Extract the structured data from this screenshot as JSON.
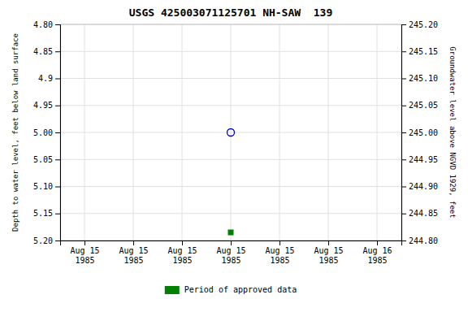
{
  "chart_data": {
    "type": "scatter",
    "title": "USGS 425003071125701 NH-SAW  139",
    "ylabel": "Depth to water level, feet below land surface",
    "y2label": "Groundwater level above NGVD 1929, feet",
    "categories": [
      "Aug 15\n1985",
      "Aug 15\n1985",
      "Aug 15\n1985",
      "Aug 15\n1985",
      "Aug 15\n1985",
      "Aug 15\n1985",
      "Aug 16\n1985"
    ],
    "series": [
      {
        "color": "#0000cc",
        "marker": "circle-open",
        "values": [
          null,
          null,
          null,
          5.0,
          null,
          null,
          null
        ]
      },
      {
        "name": "Period of approved data",
        "color": "#008000",
        "marker": "square",
        "values": [
          null,
          null,
          null,
          5.185,
          null,
          null,
          null
        ]
      }
    ],
    "ylim": [
      5.2,
      4.8
    ],
    "yticks": [
      {
        "value": 4.8,
        "label": "4.80"
      },
      4.85,
      4.9,
      4.95,
      {
        "value": 5.0,
        "label": "5.00"
      },
      5.05,
      {
        "value": 5.1,
        "label": "5.10"
      },
      5.15,
      {
        "value": 5.2,
        "label": "5.20"
      }
    ],
    "y2lim": [
      244.8,
      245.2
    ],
    "y2ticks": [
      {
        "value": 245.2,
        "label": "245.20"
      },
      245.15,
      {
        "value": 245.1,
        "label": "245.10"
      },
      245.05,
      {
        "value": 245.0,
        "label": "245.00"
      },
      244.95,
      {
        "value": 244.9,
        "label": "244.90"
      },
      244.85,
      {
        "value": 244.8,
        "label": "244.80"
      }
    ],
    "grid": true,
    "legend": "bottom"
  }
}
